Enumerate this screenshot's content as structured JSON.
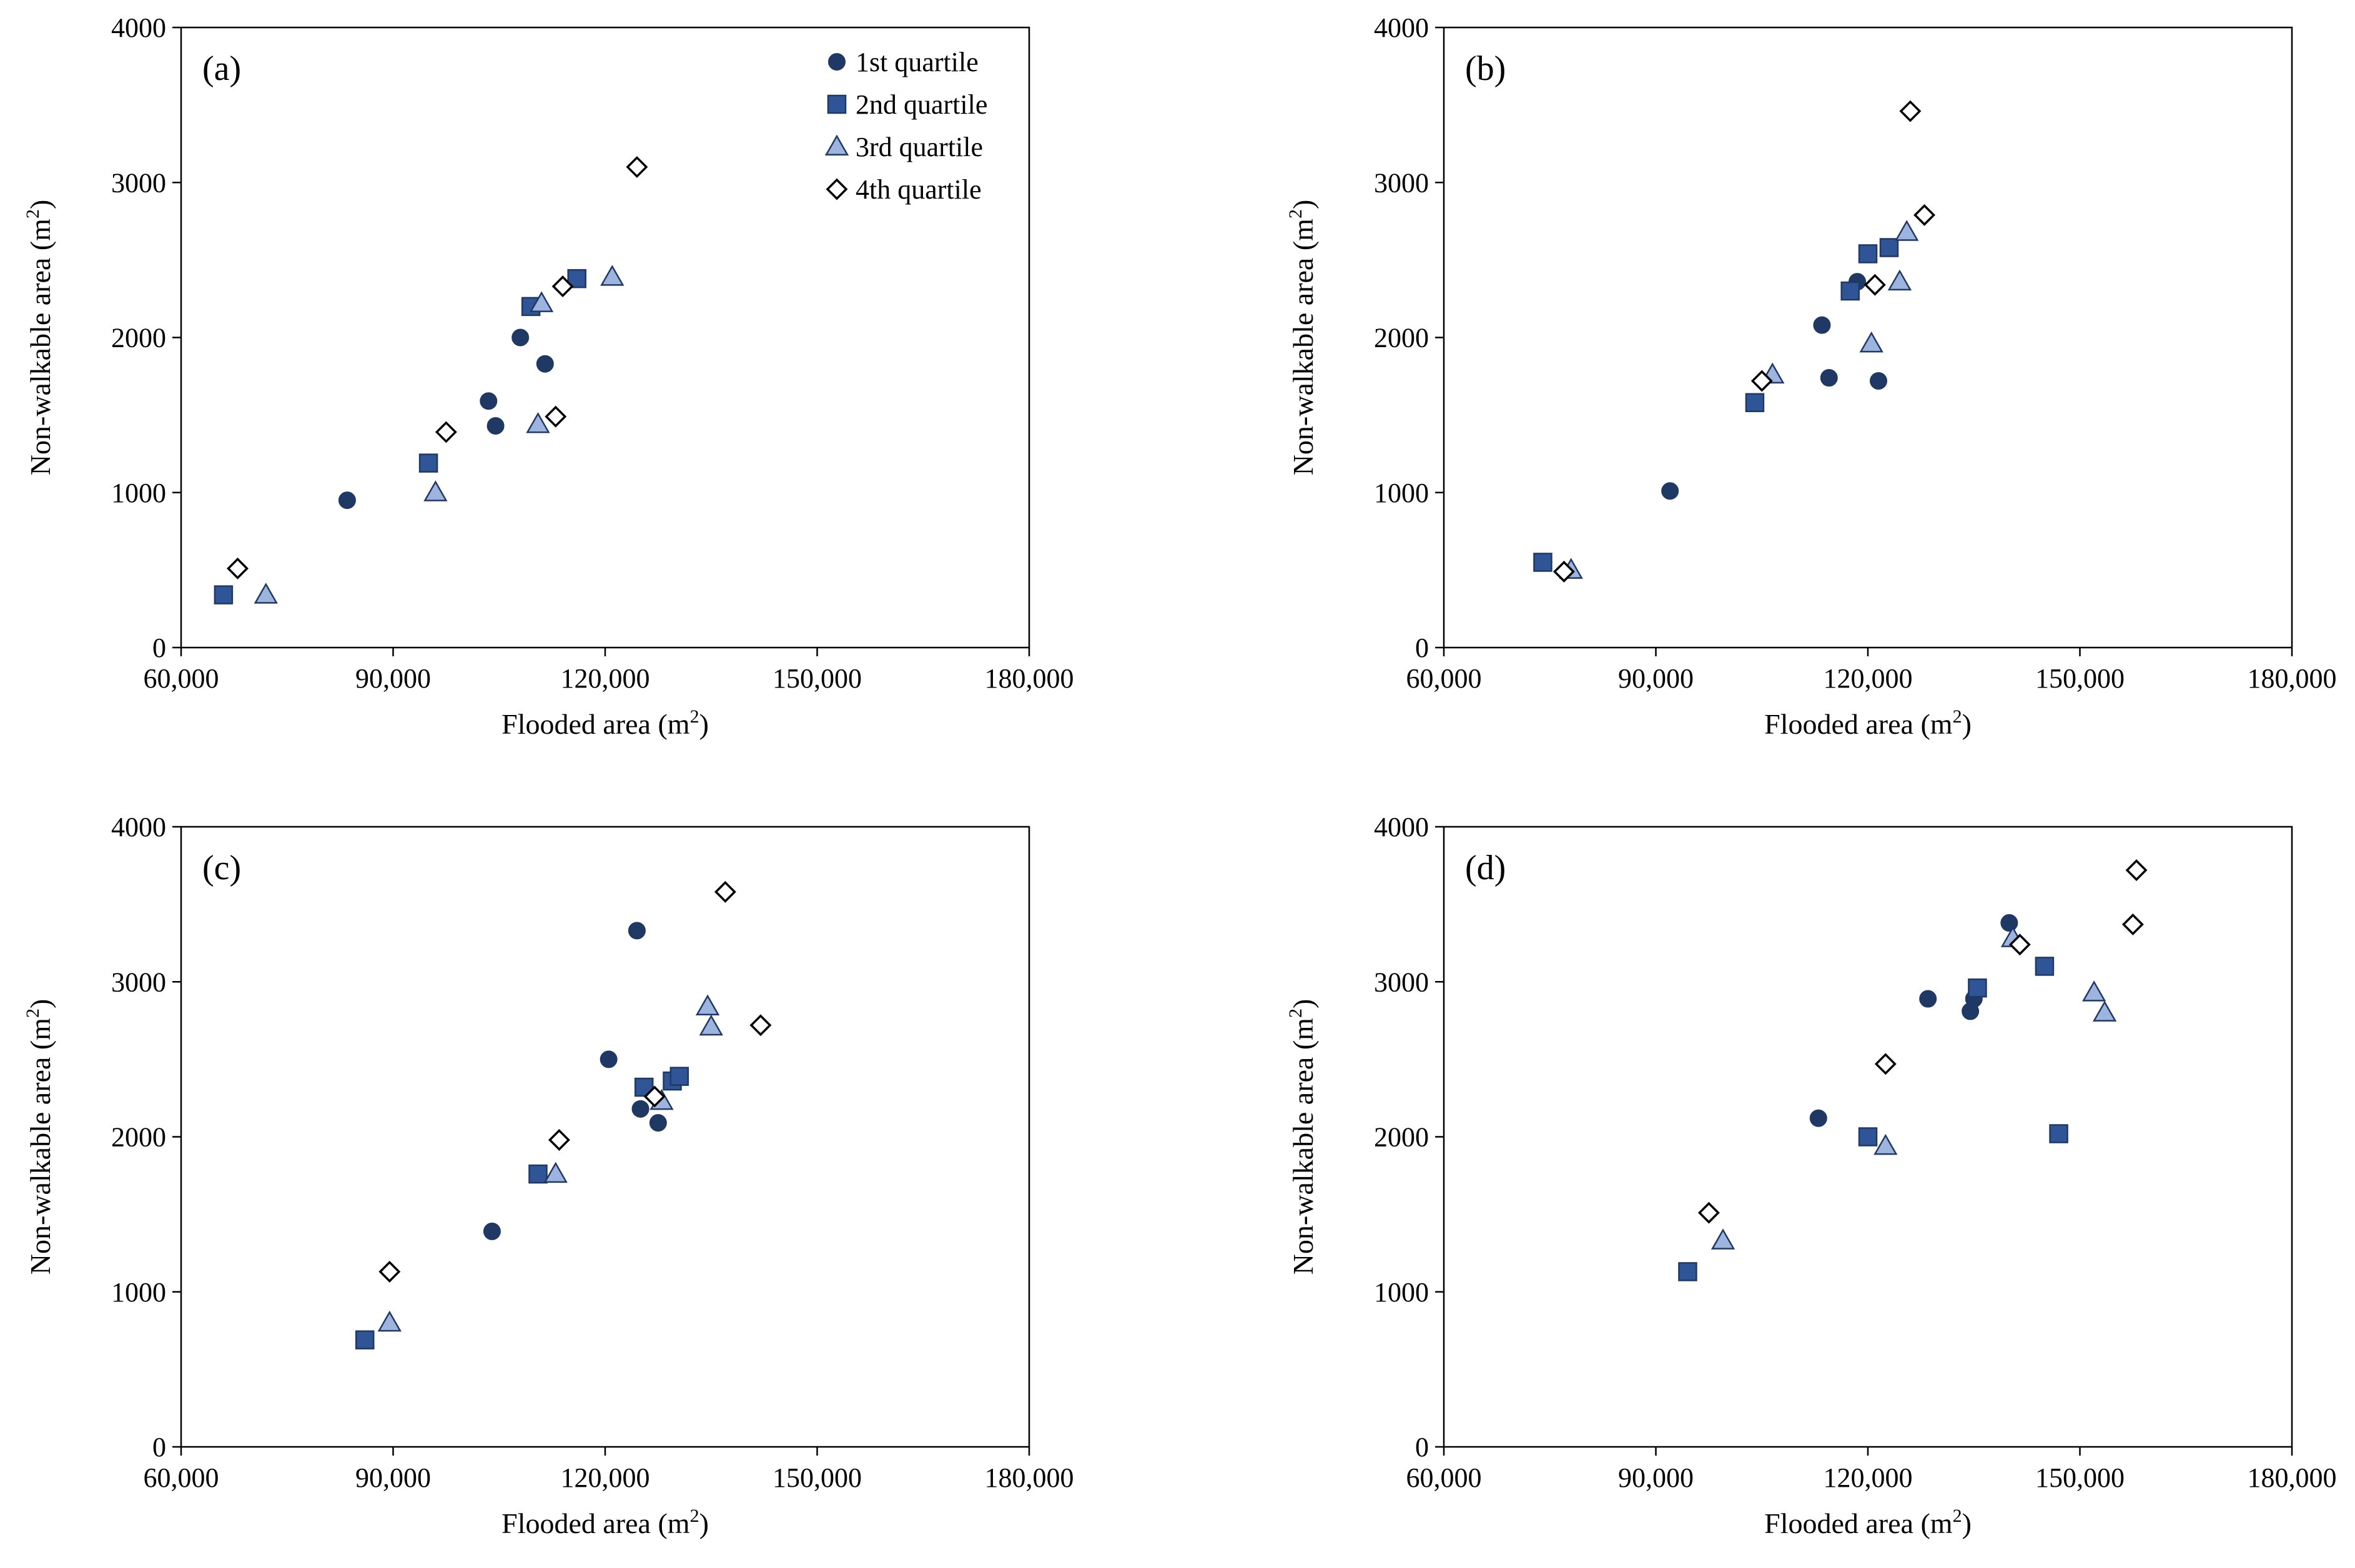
{
  "figure": {
    "legend": [
      {
        "series": "q1",
        "label": "1st quartile",
        "marker": "circle"
      },
      {
        "series": "q2",
        "label": "2nd quartile",
        "marker": "square"
      },
      {
        "series": "q3",
        "label": "3rd quartile",
        "marker": "triangle"
      },
      {
        "series": "q4",
        "label": "4th quartile",
        "marker": "diamond"
      }
    ]
  },
  "colors": {
    "q1": "#1f3864",
    "q2": "#2f5597",
    "q3": "#9db4de",
    "q4": "#ffffff",
    "stroke": "#1f3864",
    "q4_stroke": "#000000"
  },
  "chart_data": [
    {
      "type": "scatter",
      "panel": "(a)",
      "xlabel": "Flooded area (m",
      "xlabel_sup": "2",
      "xlabel_end": ")",
      "ylabel": "Non-walkable area (m",
      "ylabel_sup": "2",
      "ylabel_end": ")",
      "xlim": [
        60000,
        180000
      ],
      "ylim": [
        0,
        4000
      ],
      "xticks": [
        60000,
        90000,
        120000,
        150000,
        180000
      ],
      "xtick_labels": [
        "60,000",
        "90,000",
        "120,000",
        "150,000",
        "180,000"
      ],
      "yticks": [
        0,
        1000,
        2000,
        3000,
        4000
      ],
      "ytick_labels": [
        "0",
        "1000",
        "2000",
        "3000",
        "4000"
      ],
      "show_legend": true,
      "series": [
        {
          "name": "1st quartile",
          "key": "q1",
          "x": [
            83500,
            103500,
            104500,
            108000,
            111500
          ],
          "y": [
            950,
            1590,
            1430,
            2000,
            1830
          ]
        },
        {
          "name": "2nd quartile",
          "key": "q2",
          "x": [
            66000,
            95000,
            109500,
            116000
          ],
          "y": [
            340,
            1190,
            2200,
            2380
          ]
        },
        {
          "name": "3rd quartile",
          "key": "q3",
          "x": [
            72000,
            96000,
            110500,
            111000,
            121000
          ],
          "y": [
            340,
            1000,
            1440,
            2220,
            2390
          ]
        },
        {
          "name": "4th quartile",
          "key": "q4",
          "x": [
            68000,
            97500,
            113000,
            114000,
            124500
          ],
          "y": [
            510,
            1390,
            1490,
            2330,
            3100
          ]
        }
      ]
    },
    {
      "type": "scatter",
      "panel": "(b)",
      "xlabel": "Flooded area (m",
      "xlabel_sup": "2",
      "xlabel_end": ")",
      "ylabel": "Non-walkable area (m",
      "ylabel_sup": "2",
      "ylabel_end": ")",
      "xlim": [
        60000,
        180000
      ],
      "ylim": [
        0,
        4000
      ],
      "xticks": [
        60000,
        90000,
        120000,
        150000,
        180000
      ],
      "xtick_labels": [
        "60,000",
        "90,000",
        "120,000",
        "150,000",
        "180,000"
      ],
      "yticks": [
        0,
        1000,
        2000,
        3000,
        4000
      ],
      "ytick_labels": [
        "0",
        "1000",
        "2000",
        "3000",
        "4000"
      ],
      "show_legend": false,
      "series": [
        {
          "name": "1st quartile",
          "key": "q1",
          "x": [
            92000,
            113500,
            114500,
            118500,
            121500
          ],
          "y": [
            1010,
            2080,
            1740,
            2360,
            1720
          ]
        },
        {
          "name": "2nd quartile",
          "key": "q2",
          "x": [
            74000,
            104000,
            117500,
            120000,
            123000
          ],
          "y": [
            550,
            1580,
            2300,
            2540,
            2580
          ]
        },
        {
          "name": "3rd quartile",
          "key": "q3",
          "x": [
            78000,
            106500,
            120500,
            124500,
            125500
          ],
          "y": [
            500,
            1760,
            1960,
            2360,
            2680
          ]
        },
        {
          "name": "4th quartile",
          "key": "q4",
          "x": [
            77000,
            105000,
            121000,
            126000,
            128000
          ],
          "y": [
            490,
            1720,
            2340,
            3460,
            2790
          ]
        }
      ]
    },
    {
      "type": "scatter",
      "panel": "(c)",
      "xlabel": "Flooded area (m",
      "xlabel_sup": "2",
      "xlabel_end": ")",
      "ylabel": "Non-walkable area (m",
      "ylabel_sup": "2",
      "ylabel_end": ")",
      "xlim": [
        60000,
        180000
      ],
      "ylim": [
        0,
        4000
      ],
      "xticks": [
        60000,
        90000,
        120000,
        150000,
        180000
      ],
      "xtick_labels": [
        "60,000",
        "90,000",
        "120,000",
        "150,000",
        "180,000"
      ],
      "yticks": [
        0,
        1000,
        2000,
        3000,
        4000
      ],
      "ytick_labels": [
        "0",
        "1000",
        "2000",
        "3000",
        "4000"
      ],
      "show_legend": false,
      "series": [
        {
          "name": "1st quartile",
          "key": "q1",
          "x": [
            104000,
            120500,
            124500,
            125000,
            127500
          ],
          "y": [
            1390,
            2500,
            3330,
            2180,
            2090
          ]
        },
        {
          "name": "2nd quartile",
          "key": "q2",
          "x": [
            86000,
            110500,
            125500,
            129500,
            130500
          ],
          "y": [
            690,
            1760,
            2320,
            2360,
            2390
          ]
        },
        {
          "name": "3rd quartile",
          "key": "q3",
          "x": [
            89500,
            113000,
            128000,
            134500,
            135000
          ],
          "y": [
            800,
            1760,
            2230,
            2840,
            2710
          ]
        },
        {
          "name": "4th quartile",
          "key": "q4",
          "x": [
            89500,
            113500,
            127000,
            137000,
            142000
          ],
          "y": [
            1130,
            1980,
            2260,
            3580,
            2720
          ]
        }
      ]
    },
    {
      "type": "scatter",
      "panel": "(d)",
      "xlabel": "Flooded area (m",
      "xlabel_sup": "2",
      "xlabel_end": ")",
      "ylabel": "Non-walkable area (m",
      "ylabel_sup": "2",
      "ylabel_end": ")",
      "xlim": [
        60000,
        180000
      ],
      "ylim": [
        0,
        4000
      ],
      "xticks": [
        60000,
        90000,
        120000,
        150000,
        180000
      ],
      "xtick_labels": [
        "60,000",
        "90,000",
        "120,000",
        "150,000",
        "180,000"
      ],
      "yticks": [
        0,
        1000,
        2000,
        3000,
        4000
      ],
      "ytick_labels": [
        "0",
        "1000",
        "2000",
        "3000",
        "4000"
      ],
      "show_legend": false,
      "series": [
        {
          "name": "1st quartile",
          "key": "q1",
          "x": [
            113000,
            128500,
            134500,
            135000,
            140000
          ],
          "y": [
            2120,
            2890,
            2810,
            2890,
            3380
          ]
        },
        {
          "name": "2nd quartile",
          "key": "q2",
          "x": [
            94500,
            120000,
            135500,
            145000,
            147000
          ],
          "y": [
            1130,
            2000,
            2960,
            3100,
            2020
          ]
        },
        {
          "name": "3rd quartile",
          "key": "q3",
          "x": [
            99500,
            122500,
            140500,
            152000,
            153500
          ],
          "y": [
            1330,
            1940,
            3280,
            2930,
            2800
          ]
        },
        {
          "name": "4th quartile",
          "key": "q4",
          "x": [
            97500,
            122500,
            141500,
            157500,
            158000
          ],
          "y": [
            1510,
            2470,
            3240,
            3370,
            3720
          ]
        }
      ]
    }
  ]
}
